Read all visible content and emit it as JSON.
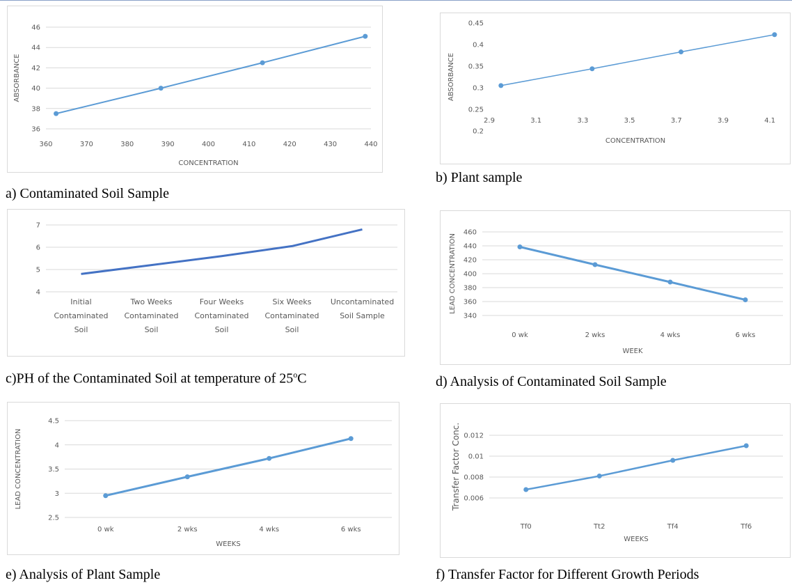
{
  "figure": {
    "captions": {
      "a": "a) Contaminated Soil Sample",
      "b": "b) Plant sample",
      "c_pre": "c)PH of the Contaminated Soil at temperature of 25",
      "c_sup": "o",
      "c_post": "C",
      "d": "d) Analysis of Contaminated Soil Sample",
      "e": "e) Analysis of Plant Sample",
      "f": "f) Transfer Factor for Different Growth Periods"
    }
  },
  "colors": {
    "line": "#5b9bd5",
    "dark_line": "#4472c4",
    "grid": "#d9d9d9",
    "axis_text": "#595959"
  },
  "chart_data": [
    {
      "id": "a",
      "type": "scatter",
      "lines": true,
      "markers": true,
      "line_width": 2,
      "title": "",
      "xlabel": "CONCENTRATION",
      "ylabel": "ABSORBANCE",
      "x": [
        362.5,
        388.3,
        413.3,
        438.6
      ],
      "y": [
        37.5,
        40.0,
        42.5,
        45.1
      ],
      "xlim": [
        360,
        440
      ],
      "ylim": [
        36,
        46
      ],
      "xticks": [
        "360",
        "370",
        "380",
        "390",
        "400",
        "410",
        "420",
        "430",
        "440"
      ],
      "yticks": [
        "36",
        "38",
        "40",
        "42",
        "44",
        "46"
      ],
      "grid": true
    },
    {
      "id": "b",
      "type": "scatter",
      "lines": true,
      "markers": true,
      "line_width": 1.5,
      "title": "",
      "xlabel": "CONCENTRATION",
      "ylabel": "ABSORBANCE",
      "x": [
        2.95,
        3.34,
        3.72,
        4.12
      ],
      "y": [
        0.305,
        0.344,
        0.383,
        0.423
      ],
      "xlim": [
        2.9,
        4.15
      ],
      "ylim": [
        0.2,
        0.45
      ],
      "xticks": [
        "2.9",
        "3.1",
        "3.3",
        "3.5",
        "3.7",
        "3.9",
        "4.1"
      ],
      "yticks": [
        "0.2",
        "0.25",
        "0.3",
        "0.35",
        "0.4",
        "0.45"
      ],
      "grid": false
    },
    {
      "id": "c",
      "type": "line",
      "markers": false,
      "line_width": 3,
      "title": "",
      "xlabel": "",
      "ylabel": "",
      "categories": [
        [
          "Initial",
          "Contaminated",
          "Soil"
        ],
        [
          "Two Weeks",
          "Contaminated",
          "Soil"
        ],
        [
          "Four Weeks",
          "Contaminated",
          "Soil"
        ],
        [
          "Six Weeks",
          "Contaminated",
          "Soil"
        ],
        [
          "Uncontaminated",
          "Soil Sample"
        ]
      ],
      "values": [
        4.8,
        5.2,
        5.6,
        6.05,
        6.8
      ],
      "ylim": [
        4,
        7
      ],
      "yticks": [
        "4",
        "5",
        "6",
        "7"
      ],
      "grid": true
    },
    {
      "id": "d",
      "type": "line",
      "markers": true,
      "line_width": 3,
      "title": "",
      "xlabel": "WEEK",
      "ylabel": "LEAD CONCENTRATION",
      "categories": [
        "0 wk",
        "2 wks",
        "4 wks",
        "6 wks"
      ],
      "values": [
        438.5,
        413.0,
        388.0,
        362.5
      ],
      "ylim": [
        340,
        460
      ],
      "yticks": [
        "340",
        "360",
        "380",
        "400",
        "420",
        "440",
        "460"
      ],
      "grid": true
    },
    {
      "id": "e",
      "type": "line",
      "markers": true,
      "line_width": 3,
      "title": "",
      "xlabel": "WEEKS",
      "ylabel": "LEAD CONCENTRATION",
      "categories": [
        "0 wk",
        "2 wks",
        "4 wks",
        "6 wks"
      ],
      "values": [
        2.95,
        3.34,
        3.72,
        4.13
      ],
      "ylim": [
        2.5,
        4.5
      ],
      "yticks": [
        "2.5",
        "3",
        "3.5",
        "4",
        "4.5"
      ],
      "grid": true
    },
    {
      "id": "f",
      "type": "line",
      "markers": true,
      "line_width": 2.5,
      "title": "",
      "xlabel": "WEEKS",
      "ylabel": "Transfer Factor Conc.",
      "categories": [
        "Tf0",
        "Tt2",
        "Tf4",
        "Tf6"
      ],
      "values": [
        0.0068,
        0.0081,
        0.0096,
        0.011
      ],
      "ylim": [
        0.005,
        0.013
      ],
      "yticks": [
        "0.006",
        "0.008",
        "0.01",
        "0.012"
      ],
      "grid": true
    }
  ]
}
